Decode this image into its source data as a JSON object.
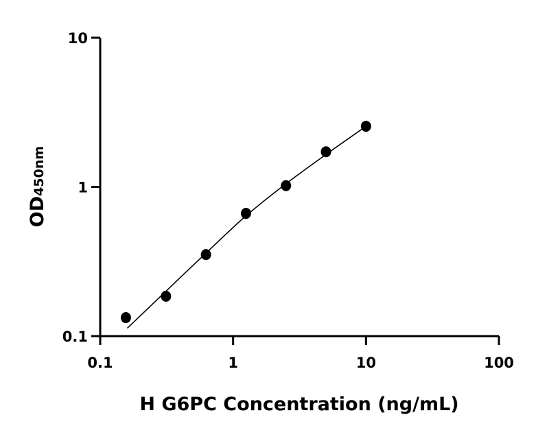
{
  "chart_data": {
    "type": "scatter",
    "xlabel": "H G6PC Concentration (ng/mL)",
    "ylabel": "OD",
    "ylabel_subscript": "450nm",
    "x_scale": "log",
    "y_scale": "log",
    "xlim": [
      0.1,
      100
    ],
    "ylim": [
      0.1,
      10
    ],
    "x_ticks": [
      "0.1",
      "1",
      "10",
      "100"
    ],
    "y_ticks": [
      "0.1",
      "1",
      "10"
    ],
    "grid": false,
    "points": {
      "x": [
        0.156,
        0.3125,
        0.625,
        1.25,
        2.5,
        5,
        10
      ],
      "y": [
        0.133,
        0.185,
        0.352,
        0.665,
        1.02,
        1.72,
        2.55
      ]
    },
    "fit_curve": {
      "x": [
        0.16,
        0.3125,
        0.625,
        1.25,
        2.5,
        5,
        10
      ],
      "y": [
        0.113,
        0.2,
        0.36,
        0.64,
        1.05,
        1.65,
        2.55
      ]
    },
    "colors": {
      "points": "#000000",
      "line": "#000000"
    }
  }
}
